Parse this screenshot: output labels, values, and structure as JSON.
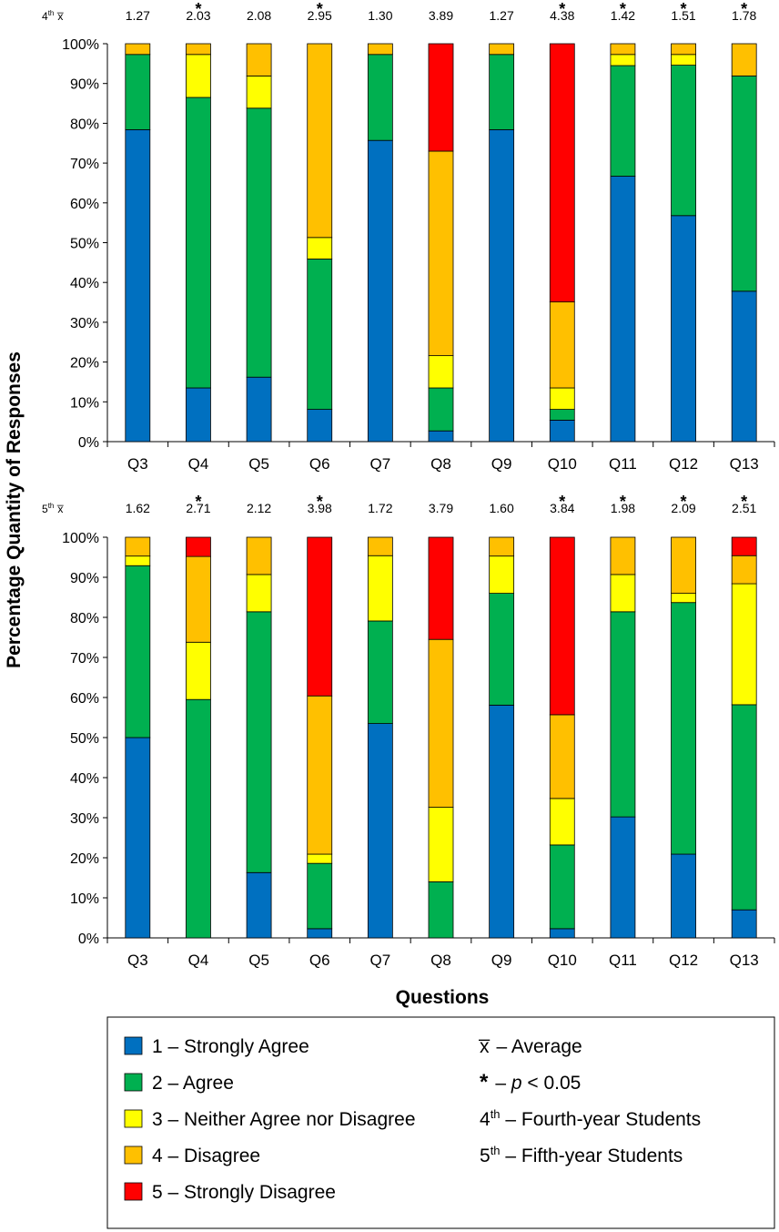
{
  "chart_data": [
    {
      "type": "bar",
      "stacked": true,
      "group_label": "4th",
      "group_sup": "th",
      "group_num": "4",
      "mean_symbol": "x̅",
      "categories": [
        "Q3",
        "Q4",
        "Q5",
        "Q6",
        "Q7",
        "Q8",
        "Q9",
        "Q10",
        "Q11",
        "Q12",
        "Q13"
      ],
      "means": [
        "1.27",
        "2.03",
        "2.08",
        "2.95",
        "1.30",
        "3.89",
        "1.27",
        "4.38",
        "1.42",
        "1.51",
        "1.78"
      ],
      "significant": [
        false,
        true,
        false,
        true,
        false,
        false,
        false,
        true,
        true,
        true,
        true
      ],
      "series": [
        {
          "name": "1 – Strongly Agree",
          "values": [
            78.4,
            13.5,
            16.2,
            8.1,
            75.7,
            2.7,
            78.4,
            5.4,
            66.7,
            56.8,
            37.8
          ]
        },
        {
          "name": "2 – Agree",
          "values": [
            18.9,
            73.0,
            67.6,
            37.8,
            21.6,
            10.8,
            18.9,
            2.7,
            27.8,
            37.8,
            54.1
          ]
        },
        {
          "name": "3 – Neither Agree nor Disagree",
          "values": [
            0,
            10.8,
            8.1,
            5.4,
            0,
            8.1,
            0,
            5.4,
            2.8,
            2.7,
            0
          ]
        },
        {
          "name": "4 – Disagree",
          "values": [
            2.7,
            2.7,
            8.1,
            48.7,
            2.7,
            51.4,
            2.7,
            21.6,
            2.7,
            2.7,
            8.1
          ]
        },
        {
          "name": "5 – Strongly Disagree",
          "values": [
            0,
            0,
            0,
            0,
            0,
            27.0,
            0,
            64.9,
            0,
            0,
            0
          ]
        }
      ],
      "ylim": [
        0,
        100
      ],
      "yticks": [
        "0%",
        "10%",
        "20%",
        "30%",
        "40%",
        "50%",
        "60%",
        "70%",
        "80%",
        "90%",
        "100%"
      ]
    },
    {
      "type": "bar",
      "stacked": true,
      "group_label": "5th",
      "group_sup": "th",
      "group_num": "5",
      "mean_symbol": "x̅",
      "categories": [
        "Q3",
        "Q4",
        "Q5",
        "Q6",
        "Q7",
        "Q8",
        "Q9",
        "Q10",
        "Q11",
        "Q12",
        "Q13"
      ],
      "means": [
        "1.62",
        "2.71",
        "2.12",
        "3.98",
        "1.72",
        "3.79",
        "1.60",
        "3.84",
        "1.98",
        "2.09",
        "2.51"
      ],
      "significant": [
        false,
        true,
        false,
        true,
        false,
        false,
        false,
        true,
        true,
        true,
        true
      ],
      "series": [
        {
          "name": "1 – Strongly Agree",
          "values": [
            50.0,
            0,
            16.3,
            2.3,
            53.5,
            0,
            58.1,
            2.3,
            30.2,
            20.9,
            7.0
          ]
        },
        {
          "name": "2 – Agree",
          "values": [
            42.9,
            59.5,
            65.1,
            16.3,
            25.6,
            14.0,
            27.9,
            20.9,
            51.2,
            62.8,
            51.2
          ]
        },
        {
          "name": "3 – Neither Agree nor Disagree",
          "values": [
            2.4,
            14.3,
            9.3,
            2.3,
            16.3,
            18.6,
            9.3,
            11.6,
            9.3,
            2.3,
            30.2
          ]
        },
        {
          "name": "4 – Disagree",
          "values": [
            4.7,
            21.4,
            9.3,
            39.5,
            4.6,
            41.9,
            4.7,
            20.9,
            9.3,
            14.0,
            7.0
          ]
        },
        {
          "name": "5 – Strongly Disagree",
          "values": [
            0,
            4.8,
            0,
            39.6,
            0,
            25.5,
            0,
            44.3,
            0,
            0,
            4.6
          ]
        }
      ],
      "ylim": [
        0,
        100
      ],
      "yticks": [
        "0%",
        "10%",
        "20%",
        "30%",
        "40%",
        "50%",
        "60%",
        "70%",
        "80%",
        "90%",
        "100%"
      ]
    }
  ],
  "colors": [
    "#0070C0",
    "#00B050",
    "#FFFF00",
    "#FFC000",
    "#FF0000"
  ],
  "ylabel": "Percentage Quantity of Responses",
  "xlabel": "Questions",
  "legend": {
    "items": [
      "1 – Strongly Agree",
      "2 – Agree",
      "3 – Neither Agree nor Disagree",
      "4 – Disagree",
      "5 – Strongly Disagree"
    ],
    "notes": [
      {
        "symbol": "x̅",
        "text": "– Average"
      },
      {
        "symbol": "*",
        "text": "– ",
        "italic": "p",
        "rest": " < 0.05"
      },
      {
        "sup_base": "4",
        "sup": "th",
        "text": " – Fourth-year Students"
      },
      {
        "sup_base": "5",
        "sup": "th",
        "text": " – Fifth-year Students"
      }
    ]
  }
}
